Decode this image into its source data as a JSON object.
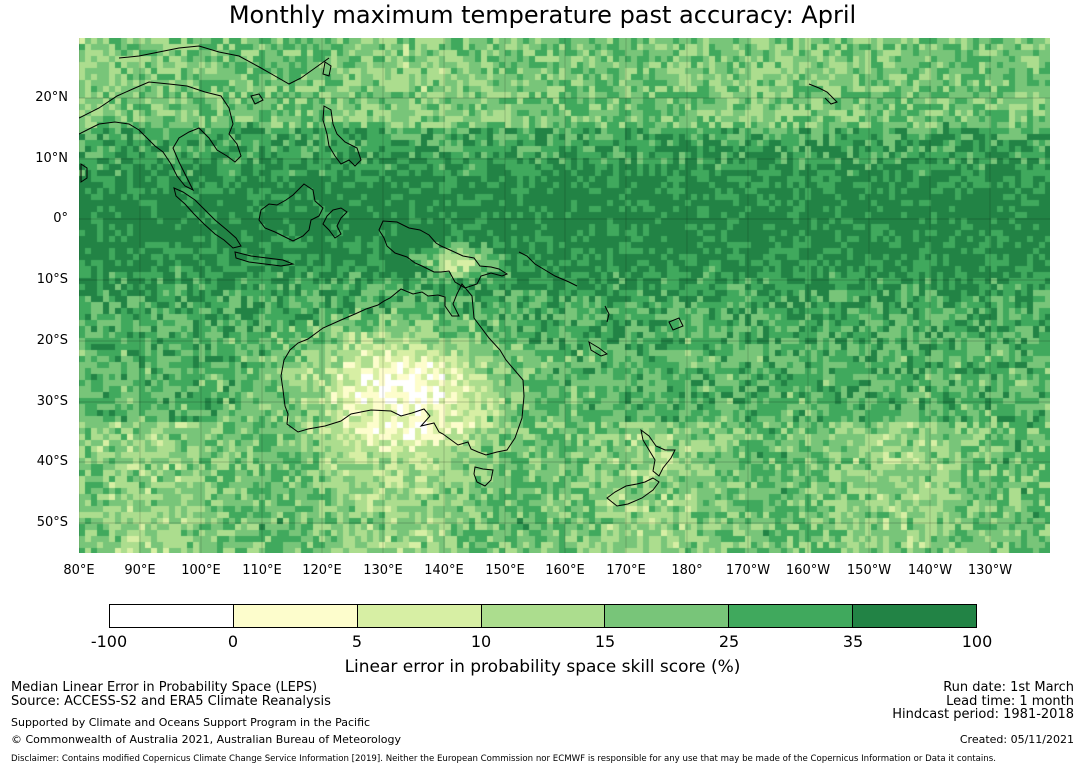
{
  "title": "Monthly maximum temperature past accuracy: April",
  "map": {
    "lat_labels": [
      "20°N",
      "10°N",
      "0°",
      "10°S",
      "20°S",
      "30°S",
      "40°S",
      "50°S"
    ],
    "lon_labels": [
      "80°E",
      "90°E",
      "100°E",
      "110°E",
      "120°E",
      "130°E",
      "140°E",
      "150°E",
      "160°E",
      "170°E",
      "180°",
      "170°W",
      "160°W",
      "150°W",
      "140°W",
      "130°W"
    ],
    "extent": {
      "lon_min": 80,
      "lon_max": 239.3,
      "lat_min": -55.5,
      "lat_max": 29.5
    }
  },
  "colorbar": {
    "ticks": [
      "-100",
      "0",
      "5",
      "10",
      "15",
      "25",
      "35",
      "100"
    ],
    "colors": [
      "#ffffff",
      "#fdfdcc",
      "#d7efa4",
      "#acdd8e",
      "#78c579",
      "#40a95d",
      "#228345"
    ],
    "label": "Linear error in probability space skill score (%)"
  },
  "footer": {
    "left_line1": "Median Linear Error in Probability Space (LEPS)",
    "left_line2": "Source: ACCESS-S2 and ERA5 Climate Reanalysis",
    "left_line3": "Supported by Climate and Oceans Support Program in the Pacific",
    "left_line4": "© Commonwealth of Australia 2021, Australian Bureau of Meteorology",
    "right_line1": "Run date: 1st March",
    "right_line2": "Lead time: 1 month",
    "right_line3": "Hindcast period: 1981-2018",
    "right_line4": "Created: 05/11/2021",
    "disclaimer": "Disclaimer: Contains modified Copernicus Climate Change Service Information [2019]. Neither the European Commission nor ECMWF is responsible for any use that may be made of the Copernicus Information or Data it contains."
  }
}
